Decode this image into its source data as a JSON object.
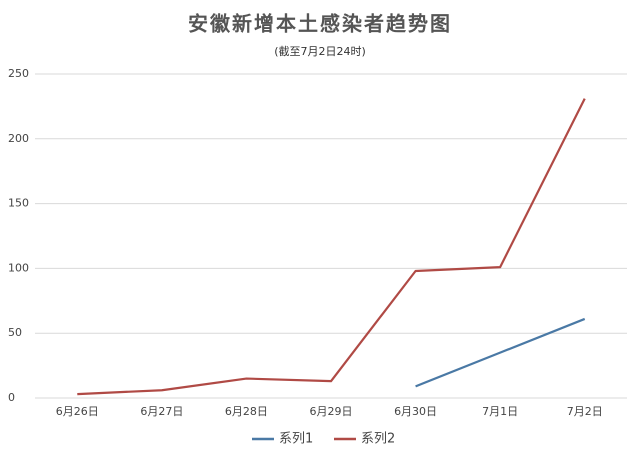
{
  "chart_data": {
    "type": "line",
    "title": "安徽新增本土感染者趋势图",
    "subtitle": "(截至7月2日24时)",
    "categories": [
      "6月26日",
      "6月27日",
      "6月28日",
      "6月29日",
      "6月30日",
      "7月1日",
      "7月2日"
    ],
    "series": [
      {
        "name": "系列1",
        "color": "#4a79a5",
        "values": [
          null,
          null,
          null,
          null,
          9,
          35,
          61
        ]
      },
      {
        "name": "系列2",
        "color": "#b04a45",
        "values": [
          3,
          6,
          15,
          13,
          98,
          101,
          231
        ]
      }
    ],
    "ylim": [
      0,
      250
    ],
    "yticks": [
      0,
      50,
      100,
      150,
      200,
      250
    ],
    "grid": true,
    "legend": "bottom"
  }
}
